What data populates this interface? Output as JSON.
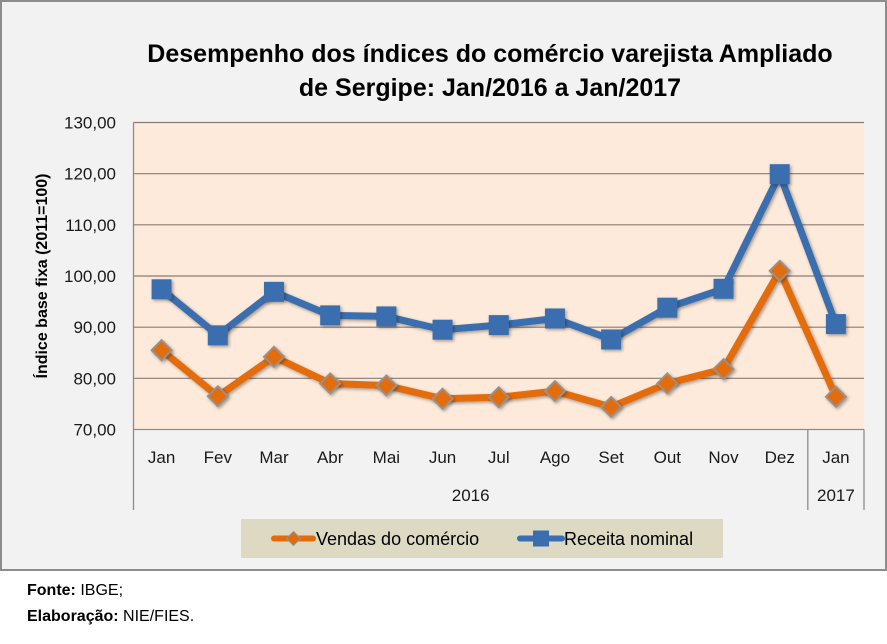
{
  "chart_data": {
    "type": "line",
    "title": "Desempenho dos índices do comércio varejista Ampliado de Sergipe: Jan/2016 a Jan/2017",
    "title_lines": [
      "Desempenho dos índices do comércio varejista Ampliado",
      "de Sergipe: Jan/2016 a Jan/2017"
    ],
    "xlabel": "",
    "ylabel": "Índice base fixa (2011=100)",
    "ylim": [
      70,
      130
    ],
    "yticks": [
      70,
      80,
      90,
      100,
      110,
      120,
      130
    ],
    "ytick_labels": [
      "70,00",
      "80,00",
      "90,00",
      "100,00",
      "110,00",
      "120,00",
      "130,00"
    ],
    "categories": [
      "Jan",
      "Fev",
      "Mar",
      "Abr",
      "Mai",
      "Jun",
      "Jul",
      "Ago",
      "Set",
      "Out",
      "Nov",
      "Dez",
      "Jan"
    ],
    "category_groups": [
      {
        "label": "2016",
        "count": 12
      },
      {
        "label": "2017",
        "count": 1
      }
    ],
    "grid": true,
    "legend_position": "bottom",
    "series": [
      {
        "name": "Vendas do comércio",
        "color": "#e36c0a",
        "marker": "diamond",
        "values": [
          85.5,
          76.5,
          84.2,
          79.0,
          78.6,
          76.0,
          76.3,
          77.5,
          74.4,
          79.0,
          81.8,
          101.0,
          76.4
        ]
      },
      {
        "name": "Receita nominal",
        "color": "#3b6eae",
        "marker": "square",
        "values": [
          97.4,
          88.4,
          96.9,
          92.3,
          92.1,
          89.5,
          90.4,
          91.7,
          87.6,
          93.8,
          97.5,
          119.9,
          90.6
        ]
      }
    ]
  },
  "footer": {
    "source_label": "Fonte:",
    "source_value": "IBGE;",
    "credit_label": "Elaboração:",
    "credit_value": "NIE/FIES."
  },
  "colors": {
    "plot_background": "#fdeada",
    "chart_background": "#f2f2f2",
    "legend_background": "#ddd9c3",
    "gridline": "#8c7b72"
  }
}
